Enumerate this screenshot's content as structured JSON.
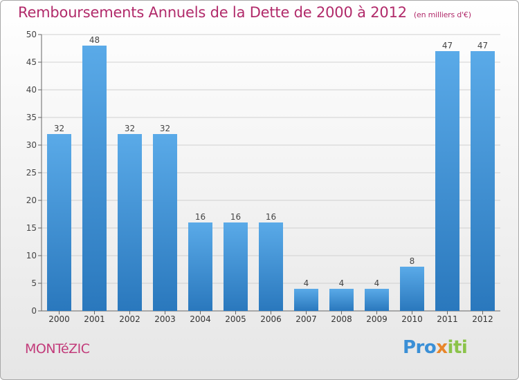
{
  "header": {
    "title": "Remboursements Annuels de la Dette de 2000 à 2012",
    "subtitle": "(en milliers d'€)"
  },
  "footer": {
    "town": "MONTéZIC",
    "logo": "Proxiti"
  },
  "colors": {
    "bar_light": "#5aaae8",
    "bar_dark": "#2a78bd",
    "title": "#b12a6a",
    "logo_blue": "#3a8fd6",
    "logo_orange": "#e8862a",
    "logo_green": "#8bc34a"
  },
  "chart_data": {
    "type": "bar",
    "title": "Remboursements Annuels de la Dette de 2000 à 2012",
    "subtitle": "(en milliers d'€)",
    "categories": [
      "2000",
      "2001",
      "2002",
      "2003",
      "2004",
      "2005",
      "2006",
      "2007",
      "2008",
      "2009",
      "2010",
      "2011",
      "2012"
    ],
    "values": [
      32,
      48,
      32,
      32,
      16,
      16,
      16,
      4,
      4,
      4,
      8,
      47,
      47
    ],
    "ylim": [
      0,
      50
    ],
    "yticks": [
      0,
      5,
      10,
      15,
      20,
      25,
      30,
      35,
      40,
      45,
      50
    ],
    "grid": true,
    "xlabel": "",
    "ylabel": ""
  }
}
